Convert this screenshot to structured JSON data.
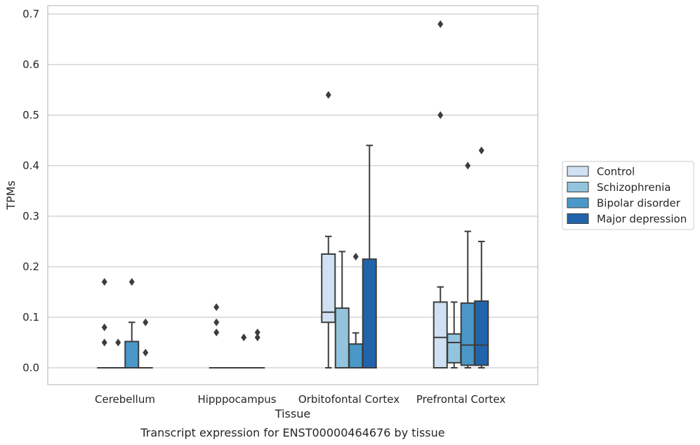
{
  "chart_data": {
    "type": "box",
    "title": "",
    "caption": "Transcript expression for ENST00000464676 by tissue",
    "xlabel": "Tissue",
    "ylabel": "TPMs",
    "ylim": [
      -0.033,
      0.715
    ],
    "yticks": [
      "0.0",
      "0.1",
      "0.2",
      "0.3",
      "0.4",
      "0.5",
      "0.6",
      "0.7"
    ],
    "grid": "horizontal",
    "legend_position": "right",
    "categories": [
      "Cerebellum",
      "Hipppocampus",
      "Orbitofontal Cortex",
      "Prefrontal Cortex"
    ],
    "series": [
      {
        "name": "Control",
        "color": "#cfe1f2",
        "boxes": [
          {
            "q1": 0,
            "median": 0,
            "q3": 0,
            "whislo": 0,
            "whishi": 0,
            "fliers": [
              0.17,
              0.08,
              0.05
            ]
          },
          {
            "q1": 0,
            "median": 0,
            "q3": 0,
            "whislo": 0,
            "whishi": 0,
            "fliers": [
              0.12,
              0.09,
              0.07
            ]
          },
          {
            "q1": 0.09,
            "median": 0.11,
            "q3": 0.225,
            "whislo": 0,
            "whishi": 0.26,
            "fliers": [
              0.54
            ]
          },
          {
            "q1": 0,
            "median": 0.06,
            "q3": 0.13,
            "whislo": 0,
            "whishi": 0.16,
            "fliers": [
              0.68,
              0.5
            ]
          }
        ]
      },
      {
        "name": "Schizophrenia",
        "color": "#93c4de",
        "boxes": [
          {
            "q1": 0,
            "median": 0,
            "q3": 0,
            "whislo": 0,
            "whishi": 0,
            "fliers": [
              0.05
            ]
          },
          {
            "q1": 0,
            "median": 0,
            "q3": 0,
            "whislo": 0,
            "whishi": 0,
            "fliers": []
          },
          {
            "q1": 0,
            "median": 0,
            "q3": 0.118,
            "whislo": 0,
            "whishi": 0.23,
            "fliers": []
          },
          {
            "q1": 0.01,
            "median": 0.05,
            "q3": 0.067,
            "whislo": 0,
            "whishi": 0.13,
            "fliers": []
          }
        ]
      },
      {
        "name": "Bipolar disorder",
        "color": "#4a98c9",
        "boxes": [
          {
            "q1": 0,
            "median": 0,
            "q3": 0.052,
            "whislo": 0,
            "whishi": 0.09,
            "fliers": [
              0.17
            ]
          },
          {
            "q1": 0,
            "median": 0,
            "q3": 0,
            "whislo": 0,
            "whishi": 0,
            "fliers": [
              0.06
            ]
          },
          {
            "q1": 0,
            "median": 0,
            "q3": 0.047,
            "whislo": 0,
            "whishi": 0.069,
            "fliers": [
              0.22
            ]
          },
          {
            "q1": 0.005,
            "median": 0.045,
            "q3": 0.128,
            "whislo": 0,
            "whishi": 0.27,
            "fliers": [
              0.4
            ]
          }
        ]
      },
      {
        "name": "Major depression",
        "color": "#2164ab",
        "boxes": [
          {
            "q1": 0,
            "median": 0,
            "q3": 0,
            "whislo": 0,
            "whishi": 0,
            "fliers": [
              0.09,
              0.03
            ]
          },
          {
            "q1": 0,
            "median": 0,
            "q3": 0,
            "whislo": 0,
            "whishi": 0,
            "fliers": [
              0.07,
              0.06
            ]
          },
          {
            "q1": 0,
            "median": 0,
            "q3": 0.215,
            "whislo": 0,
            "whishi": 0.44,
            "fliers": []
          },
          {
            "q1": 0.005,
            "median": 0.045,
            "q3": 0.132,
            "whislo": 0,
            "whishi": 0.25,
            "fliers": [
              0.43
            ]
          }
        ]
      }
    ]
  }
}
